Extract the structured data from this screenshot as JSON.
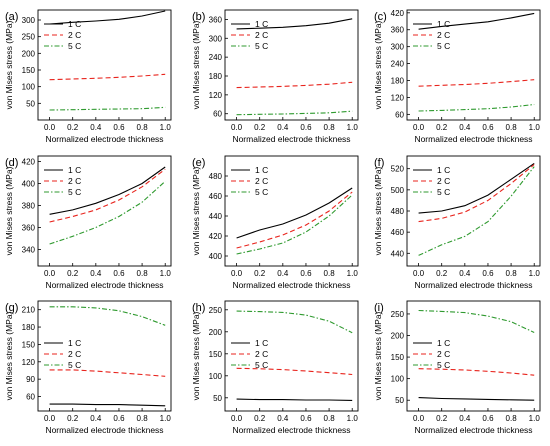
{
  "chart_data": [
    {
      "panel": "(a)",
      "type": "line",
      "xlabel": "Normalized electrode thickness",
      "ylabel": "von Mises stress (MPa)",
      "xlim": [
        -0.1,
        1.05
      ],
      "ylim": [
        0,
        330
      ],
      "xticks": [
        "0.0",
        "0.2",
        "0.4",
        "0.6",
        "0.8",
        "1.0"
      ],
      "yticks": [
        50,
        100,
        150,
        200,
        250,
        300
      ],
      "x": [
        0,
        0.2,
        0.4,
        0.6,
        0.8,
        1.0
      ],
      "legend": "top-left",
      "series": [
        {
          "name": "1 C",
          "values": [
            288,
            293,
            297,
            302,
            312,
            327
          ]
        },
        {
          "name": "2 C",
          "values": [
            121,
            123,
            125,
            128,
            132,
            137
          ]
        },
        {
          "name": "5 C",
          "values": [
            30,
            31,
            32,
            33,
            34,
            38
          ]
        }
      ]
    },
    {
      "panel": "(b)",
      "type": "line",
      "xlabel": "Normalized electrode thickness",
      "ylabel": "von Mises stress (MPa)",
      "xlim": [
        -0.1,
        1.05
      ],
      "ylim": [
        40,
        390
      ],
      "xticks": [
        "0.0",
        "0.2",
        "0.4",
        "0.6",
        "0.8",
        "1.0"
      ],
      "yticks": [
        60,
        120,
        180,
        240,
        300,
        360
      ],
      "x": [
        0,
        0.2,
        0.4,
        0.6,
        0.8,
        1.0
      ],
      "legend": "top-left",
      "series": [
        {
          "name": "1 C",
          "values": [
            330,
            332,
            335,
            340,
            348,
            362
          ]
        },
        {
          "name": "2 C",
          "values": [
            143,
            145,
            147,
            150,
            154,
            160
          ]
        },
        {
          "name": "5 C",
          "values": [
            57,
            58,
            59,
            61,
            63,
            68
          ]
        }
      ]
    },
    {
      "panel": "(c)",
      "type": "line",
      "xlabel": "Normalized electrode thickness",
      "ylabel": "von Mises stress (MPa)",
      "xlim": [
        -0.1,
        1.05
      ],
      "ylim": [
        40,
        430
      ],
      "xticks": [
        "0.0",
        "0.2",
        "0.4",
        "0.6",
        "0.8",
        "1.0"
      ],
      "yticks": [
        60,
        120,
        180,
        240,
        300,
        360,
        420
      ],
      "x": [
        0,
        0.2,
        0.4,
        0.6,
        0.8,
        1.0
      ],
      "legend": "top-left",
      "series": [
        {
          "name": "1 C",
          "values": [
            362,
            372,
            380,
            388,
            402,
            418
          ]
        },
        {
          "name": "2 C",
          "values": [
            160,
            163,
            166,
            170,
            176,
            183
          ]
        },
        {
          "name": "5 C",
          "values": [
            72,
            74,
            77,
            80,
            86,
            95
          ]
        }
      ]
    },
    {
      "panel": "(d)",
      "type": "line",
      "xlabel": "Normalized electrode thickness",
      "ylabel": "von Mises stress (MPa)",
      "xlim": [
        -0.1,
        1.05
      ],
      "ylim": [
        325,
        425
      ],
      "xticks": [
        "0.0",
        "0.2",
        "0.4",
        "0.6",
        "0.8",
        "1.0"
      ],
      "yticks": [
        340,
        360,
        380,
        400,
        420
      ],
      "x": [
        0,
        0.2,
        0.4,
        0.6,
        0.8,
        1.0
      ],
      "legend": "top-left",
      "series": [
        {
          "name": "1 C",
          "values": [
            372,
            376,
            382,
            390,
            400,
            415
          ]
        },
        {
          "name": "2 C",
          "values": [
            365,
            370,
            376,
            385,
            397,
            413
          ]
        },
        {
          "name": "5 C",
          "values": [
            345,
            352,
            360,
            370,
            383,
            402
          ]
        }
      ]
    },
    {
      "panel": "(e)",
      "type": "line",
      "xlabel": "Normalized electrode thickness",
      "ylabel": "von Mises stress (MPa)",
      "xlim": [
        -0.1,
        1.05
      ],
      "ylim": [
        390,
        500
      ],
      "xticks": [
        "0.0",
        "0.2",
        "0.4",
        "0.6",
        "0.8",
        "1.0"
      ],
      "yticks": [
        400,
        420,
        440,
        460,
        480
      ],
      "x": [
        0,
        0.2,
        0.4,
        0.6,
        0.8,
        1.0
      ],
      "legend": "top-left",
      "series": [
        {
          "name": "1 C",
          "values": [
            418,
            426,
            432,
            441,
            453,
            468
          ]
        },
        {
          "name": "2 C",
          "values": [
            408,
            414,
            421,
            431,
            445,
            464
          ]
        },
        {
          "name": "5 C",
          "values": [
            402,
            407,
            413,
            424,
            440,
            461
          ]
        }
      ]
    },
    {
      "panel": "(f)",
      "type": "line",
      "xlabel": "Normalized electrode thickness",
      "ylabel": "von Mises stress (MPa)",
      "xlim": [
        -0.1,
        1.05
      ],
      "ylim": [
        428,
        532
      ],
      "xticks": [
        "0.0",
        "0.2",
        "0.4",
        "0.6",
        "0.8",
        "1.0"
      ],
      "yticks": [
        440,
        460,
        480,
        500,
        520
      ],
      "x": [
        0,
        0.2,
        0.4,
        0.6,
        0.8,
        1.0
      ],
      "legend": "top-left",
      "series": [
        {
          "name": "1 C",
          "values": [
            478,
            480,
            485,
            495,
            510,
            525
          ]
        },
        {
          "name": "2 C",
          "values": [
            470,
            473,
            479,
            490,
            506,
            524
          ]
        },
        {
          "name": "5 C",
          "values": [
            438,
            448,
            456,
            470,
            494,
            522
          ]
        }
      ]
    },
    {
      "panel": "(g)",
      "type": "line",
      "xlabel": "Normalized electrode thickness",
      "ylabel": "von Mises stress (MPa)",
      "xlim": [
        -0.1,
        1.05
      ],
      "ylim": [
        35,
        225
      ],
      "xticks": [
        "0.0",
        "0.2",
        "0.4",
        "0.6",
        "0.8",
        "1.0"
      ],
      "yticks": [
        60,
        90,
        120,
        150,
        180,
        210
      ],
      "x": [
        0,
        0.2,
        0.4,
        0.6,
        0.8,
        1.0
      ],
      "legend": "middle-left",
      "series": [
        {
          "name": "1 C",
          "values": [
            47,
            47,
            46,
            46,
            45,
            44
          ]
        },
        {
          "name": "2 C",
          "values": [
            106,
            106,
            104,
            101,
            98,
            95
          ]
        },
        {
          "name": "5 C",
          "values": [
            215,
            215,
            213,
            208,
            198,
            183
          ]
        }
      ]
    },
    {
      "panel": "(h)",
      "type": "line",
      "xlabel": "Normalized electrode thickness",
      "ylabel": "von Mises stress (MPa)",
      "xlim": [
        -0.1,
        1.05
      ],
      "ylim": [
        20,
        270
      ],
      "xticks": [
        "0.0",
        "0.2",
        "0.4",
        "0.6",
        "0.8",
        "1.0"
      ],
      "yticks": [
        50,
        100,
        150,
        200,
        250
      ],
      "x": [
        0,
        0.2,
        0.4,
        0.6,
        0.8,
        1.0
      ],
      "legend": "middle-left",
      "series": [
        {
          "name": "1 C",
          "values": [
            47,
            46,
            46,
            45,
            45,
            44
          ]
        },
        {
          "name": "2 C",
          "values": [
            117,
            116,
            114,
            111,
            107,
            103
          ]
        },
        {
          "name": "5 C",
          "values": [
            247,
            246,
            244,
            238,
            224,
            198
          ]
        }
      ]
    },
    {
      "panel": "(i)",
      "type": "line",
      "xlabel": "Normalized electrode thickness",
      "ylabel": "von Mises stress (MPa)",
      "xlim": [
        -0.1,
        1.05
      ],
      "ylim": [
        25,
        280
      ],
      "xticks": [
        "0.0",
        "0.2",
        "0.4",
        "0.6",
        "0.8",
        "1.0"
      ],
      "yticks": [
        50,
        100,
        150,
        200,
        250
      ],
      "x": [
        0,
        0.2,
        0.4,
        0.6,
        0.8,
        1.0
      ],
      "legend": "middle-left",
      "series": [
        {
          "name": "1 C",
          "values": [
            56,
            54,
            53,
            52,
            51,
            50
          ]
        },
        {
          "name": "2 C",
          "values": [
            123,
            122,
            120,
            117,
            113,
            108
          ]
        },
        {
          "name": "5 C",
          "values": [
            258,
            256,
            253,
            245,
            232,
            207
          ]
        }
      ]
    }
  ],
  "colors": {
    "1 C": "#000000",
    "2 C": "#e8231c",
    "5 C": "#2f9a2f"
  }
}
